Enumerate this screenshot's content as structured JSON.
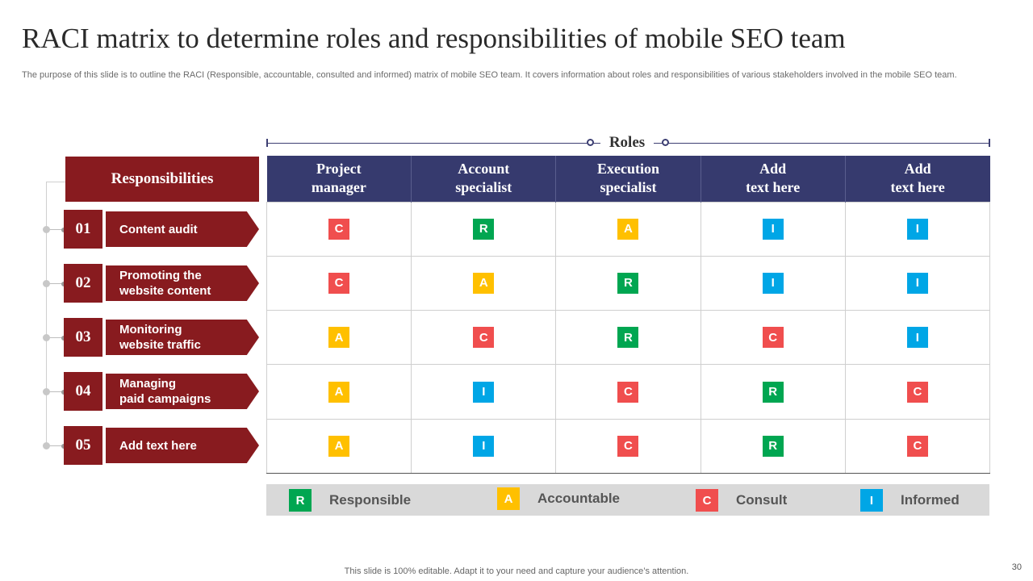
{
  "title": "RACI matrix to determine roles and responsibilities of mobile SEO team",
  "subtitle": "The purpose of this slide is to outline the RACI (Responsible, accountable, consulted and informed) matrix of mobile SEO team. It covers information about roles and responsibilities of various stakeholders involved in the mobile SEO team.",
  "roles_label": "Roles",
  "responsibilities_header": "Responsibilities",
  "rows": [
    {
      "num": "01",
      "label": "Content audit",
      "cells": [
        "C",
        "R",
        "A",
        "I",
        "I"
      ]
    },
    {
      "num": "02",
      "label": "Promoting the\nwebsite content",
      "cells": [
        "C",
        "A",
        "R",
        "I",
        "I"
      ]
    },
    {
      "num": "03",
      "label": "Monitoring\nwebsite traffic",
      "cells": [
        "A",
        "C",
        "R",
        "C",
        "I"
      ]
    },
    {
      "num": "04",
      "label": "Managing\npaid campaigns",
      "cells": [
        "A",
        "I",
        "C",
        "R",
        "C"
      ]
    },
    {
      "num": "05",
      "label": "Add text here",
      "cells": [
        "A",
        "I",
        "C",
        "R",
        "C"
      ]
    }
  ],
  "columns": [
    "Project\nmanager",
    "Account\nspecialist",
    "Execution\nspecialist",
    "Add\ntext here",
    "Add\ntext here"
  ],
  "legend": [
    {
      "letter": "R",
      "label": "Responsible"
    },
    {
      "letter": "A",
      "label": "Accountable"
    },
    {
      "letter": "C",
      "label": "Consult"
    },
    {
      "letter": "I",
      "label": "Informed"
    }
  ],
  "colors": {
    "R": "#00a651",
    "A": "#ffc000",
    "C": "#f04e4e",
    "I": "#00a6e6",
    "maroon": "#881b1f",
    "navy": "#363a6e"
  },
  "footer": "This slide is 100% editable. Adapt it to your need and capture your audience’s attention.",
  "page_number": "30"
}
